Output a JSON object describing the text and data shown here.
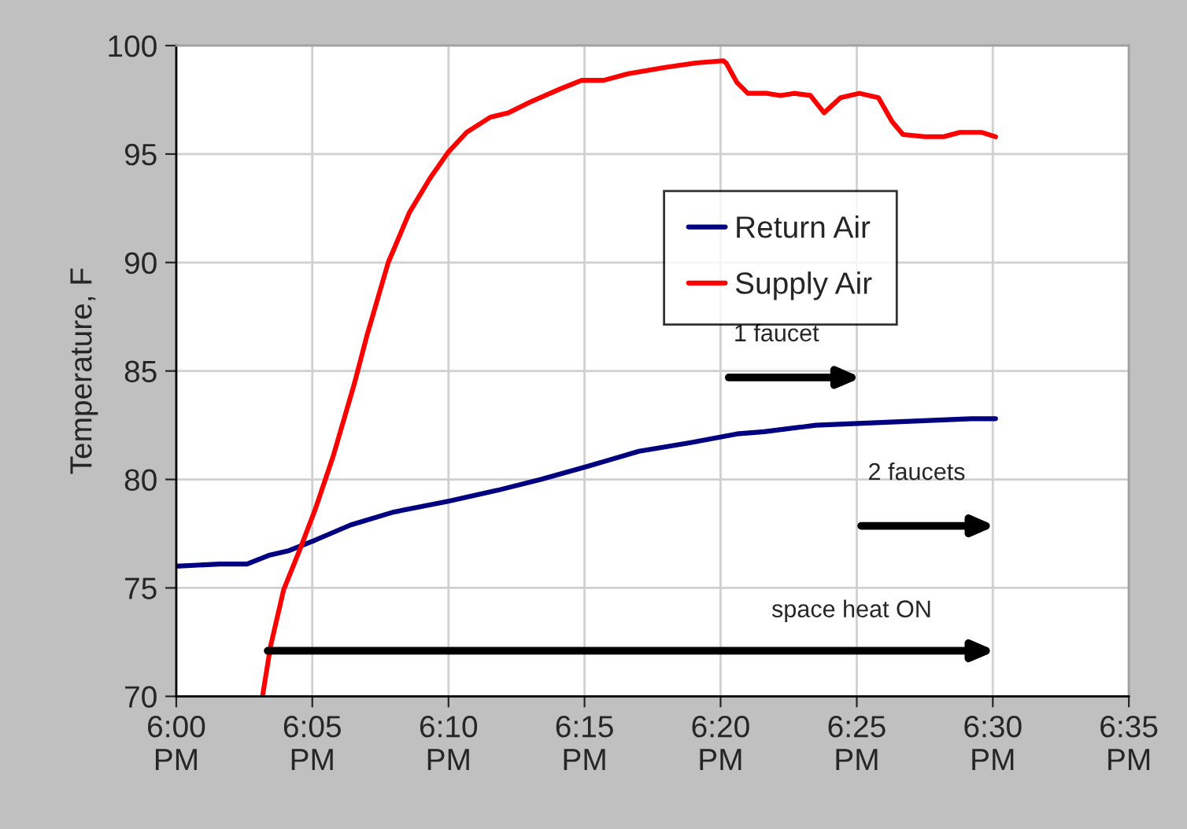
{
  "chart_data": {
    "type": "line",
    "ylabel": "Temperature, F",
    "xlim": [
      18,
      18.5833
    ],
    "xticks": [
      {
        "value": 18,
        "label": "6:00\nPM"
      },
      {
        "value": 18.0833,
        "label": "6:05\nPM"
      },
      {
        "value": 18.1667,
        "label": "6:10\nPM"
      },
      {
        "value": 18.25,
        "label": "6:15\nPM"
      },
      {
        "value": 18.3333,
        "label": "6:20\nPM"
      },
      {
        "value": 18.4167,
        "label": "6:25\nPM"
      },
      {
        "value": 18.5,
        "label": "6:30\nPM"
      },
      {
        "value": 18.5833,
        "label": "6:35\nPM"
      }
    ],
    "ylim": [
      70,
      100
    ],
    "yticks": [
      70,
      75,
      80,
      85,
      90,
      95,
      100
    ],
    "grid": true,
    "legend": "top right",
    "line_style": "solid",
    "marker": "none",
    "series": [
      {
        "name": "Return Air",
        "color": "#000080",
        "x": [
          18.0,
          18.0267,
          18.0433,
          18.0567,
          18.0683,
          18.085,
          18.1067,
          18.1333,
          18.1667,
          18.1967,
          18.2233,
          18.2517,
          18.2833,
          18.315,
          18.3433,
          18.36,
          18.3917,
          18.4233,
          18.455,
          18.4867,
          18.5017
        ],
        "values": [
          76.0,
          76.1,
          76.1,
          76.5,
          76.7,
          77.2,
          77.9,
          78.5,
          79.0,
          79.5,
          80.0,
          80.6,
          81.3,
          81.7,
          82.1,
          82.2,
          82.5,
          82.6,
          82.7,
          82.8,
          82.8
        ]
      },
      {
        "name": "Supply Air",
        "color": "#ff0000",
        "x": [
          18.0528,
          18.0577,
          18.0657,
          18.0753,
          18.085,
          18.0962,
          18.109,
          18.117,
          18.1298,
          18.1427,
          18.1555,
          18.1667,
          18.1778,
          18.1923,
          18.2033,
          18.2167,
          18.235,
          18.2483,
          18.2617,
          18.2767,
          18.3,
          18.3183,
          18.335,
          18.3367,
          18.3433,
          18.35,
          18.3617,
          18.37,
          18.3783,
          18.3883,
          18.3967,
          18.4067,
          18.4183,
          18.43,
          18.4383,
          18.445,
          18.4583,
          18.47,
          18.48,
          18.4933,
          18.5017
        ],
        "values": [
          70.0,
          72.3,
          74.9,
          76.7,
          78.6,
          81.1,
          84.4,
          86.7,
          90.0,
          92.3,
          93.9,
          95.1,
          96.0,
          96.7,
          96.9,
          97.4,
          98.0,
          98.4,
          98.4,
          98.7,
          99.0,
          99.2,
          99.3,
          99.2,
          98.3,
          97.8,
          97.8,
          97.7,
          97.8,
          97.7,
          96.9,
          97.6,
          97.8,
          97.6,
          96.5,
          95.9,
          95.8,
          95.8,
          96.0,
          96.0,
          95.8
        ]
      }
    ],
    "annotations": [
      "1 faucet",
      "2 faucets",
      "space heat ON"
    ]
  }
}
